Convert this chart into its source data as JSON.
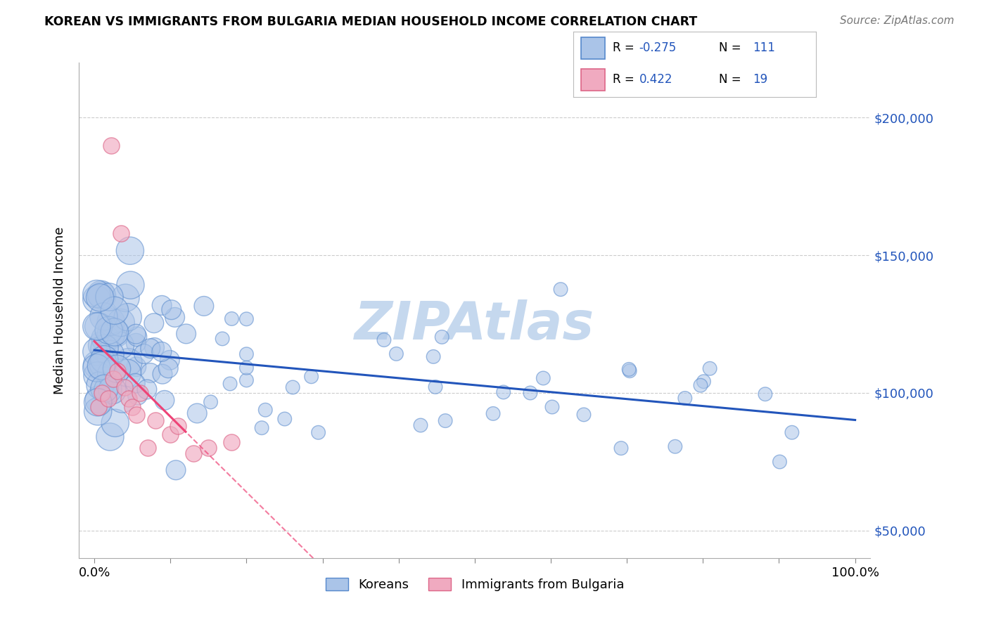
{
  "title": "KOREAN VS IMMIGRANTS FROM BULGARIA MEDIAN HOUSEHOLD INCOME CORRELATION CHART",
  "source": "Source: ZipAtlas.com",
  "ylabel": "Median Household Income",
  "xlim": [
    -2,
    102
  ],
  "ylim": [
    40000,
    220000
  ],
  "yticks": [
    50000,
    100000,
    150000,
    200000
  ],
  "ytick_labels": [
    "$50,000",
    "$100,000",
    "$150,000",
    "$200,000"
  ],
  "blue_color": "#aac4e8",
  "blue_edge": "#5588cc",
  "pink_color": "#f0aac0",
  "pink_edge": "#dd6688",
  "blue_line_color": "#2255bb",
  "pink_line_color": "#ee4477",
  "watermark": "ZIPAtlas",
  "watermark_color": "#c5d8ee",
  "legend_color": "#2255bb",
  "title_color": "#000000",
  "source_color": "#777777"
}
